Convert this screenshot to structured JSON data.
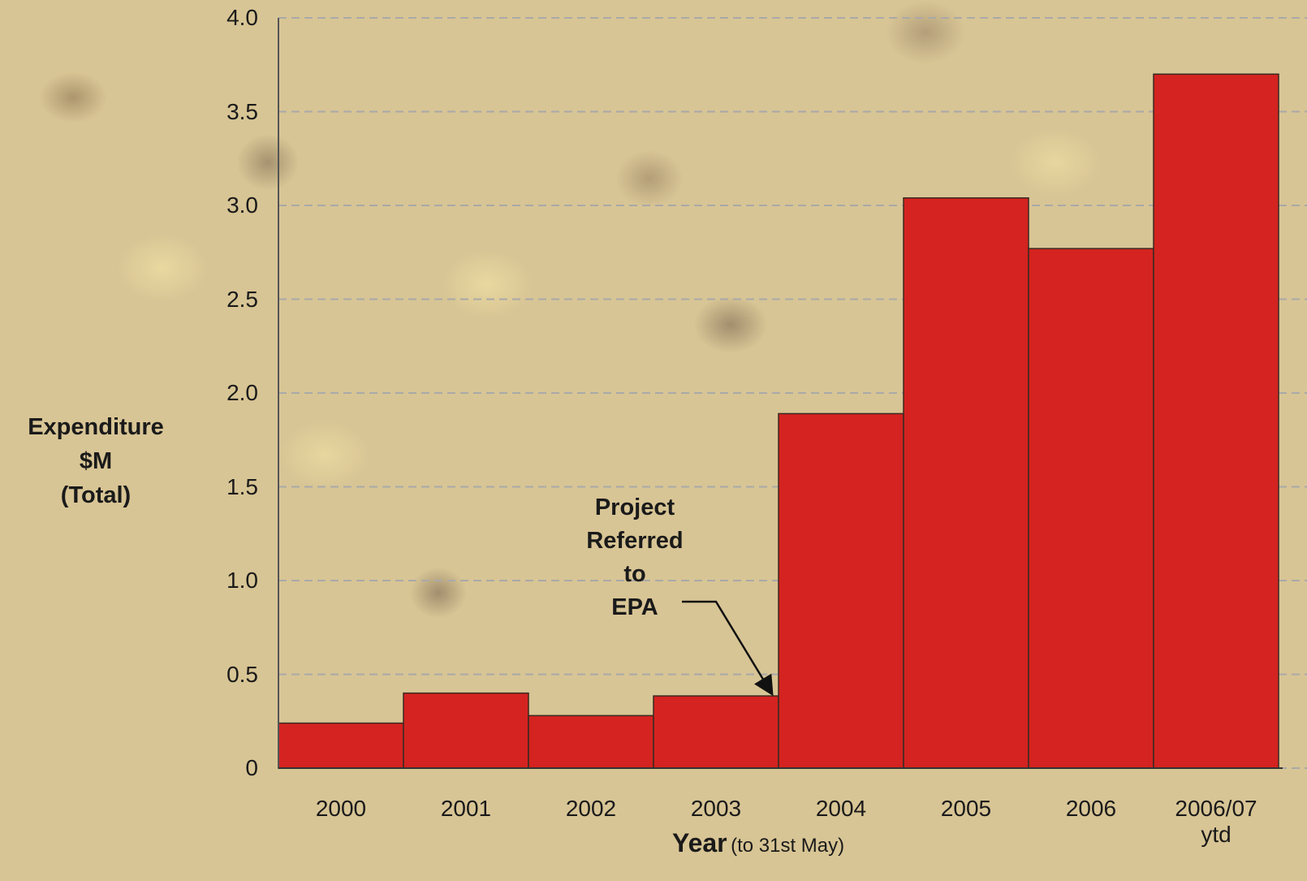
{
  "chart_data": {
    "type": "bar",
    "y_label": "Expenditure\n$M\n(Total)",
    "x_label": "Year",
    "x_label_note": "(to 31st May)",
    "annotation": "Project\nReferred\nto\nEPA",
    "categories": [
      "2000",
      "2001",
      "2002",
      "2003",
      "2004",
      "2005",
      "2006",
      "2006/07\nytd"
    ],
    "values": [
      0.24,
      0.4,
      0.28,
      0.385,
      1.89,
      3.04,
      2.77,
      3.7
    ],
    "color": "#d42320",
    "ylim": [
      0,
      4
    ],
    "yticks": [
      0,
      0.5,
      {
        "value": 1,
        "label": "1.0"
      },
      1.5,
      {
        "value": 2,
        "label": "2.0"
      },
      2.5,
      {
        "value": 3,
        "label": "3.0"
      },
      3.5,
      {
        "value": 4,
        "label": "4.0"
      }
    ],
    "grid": true
  }
}
